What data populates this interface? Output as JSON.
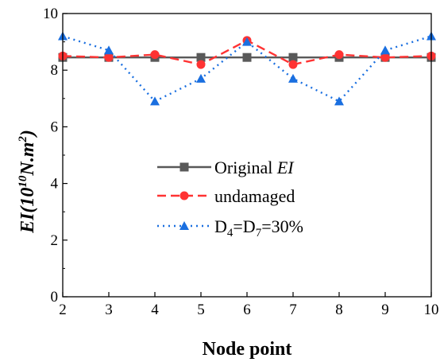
{
  "chart_data": {
    "type": "line",
    "xlabel": "Node point",
    "ylabel": {
      "parts": [
        "EI(10",
        "10",
        "N.",
        "m",
        "2",
        ")"
      ]
    },
    "x": [
      2,
      3,
      4,
      5,
      6,
      7,
      8,
      9,
      10
    ],
    "xlim": [
      2,
      10
    ],
    "ylim": [
      0,
      10
    ],
    "xticks": [
      "2",
      "3",
      "4",
      "5",
      "6",
      "7",
      "8",
      "9",
      "10"
    ],
    "yticks": [
      "0",
      "2",
      "4",
      "6",
      "8",
      "10"
    ],
    "legend_position": "center-right",
    "series": [
      {
        "name": "Original EI",
        "legend_parts": [
          "Original ",
          "EI"
        ],
        "color": "#595959",
        "line": "solid",
        "marker": "square",
        "values": [
          8.45,
          8.45,
          8.45,
          8.45,
          8.45,
          8.45,
          8.45,
          8.45,
          8.45
        ]
      },
      {
        "name": "undamaged",
        "legend_parts": [
          "undamaged"
        ],
        "color": "#ff3333",
        "line": "dashed",
        "marker": "circle",
        "values": [
          8.5,
          8.45,
          8.55,
          8.2,
          9.05,
          8.2,
          8.55,
          8.45,
          8.5
        ]
      },
      {
        "name": "D4=D7=30%",
        "legend_parts": [
          "D",
          "4",
          "=D",
          "7",
          "=30%"
        ],
        "color": "#1a6fe0",
        "line": "dotted",
        "marker": "triangle",
        "values": [
          9.2,
          8.7,
          6.9,
          7.7,
          9.0,
          7.7,
          6.9,
          8.7,
          9.2
        ]
      }
    ]
  }
}
